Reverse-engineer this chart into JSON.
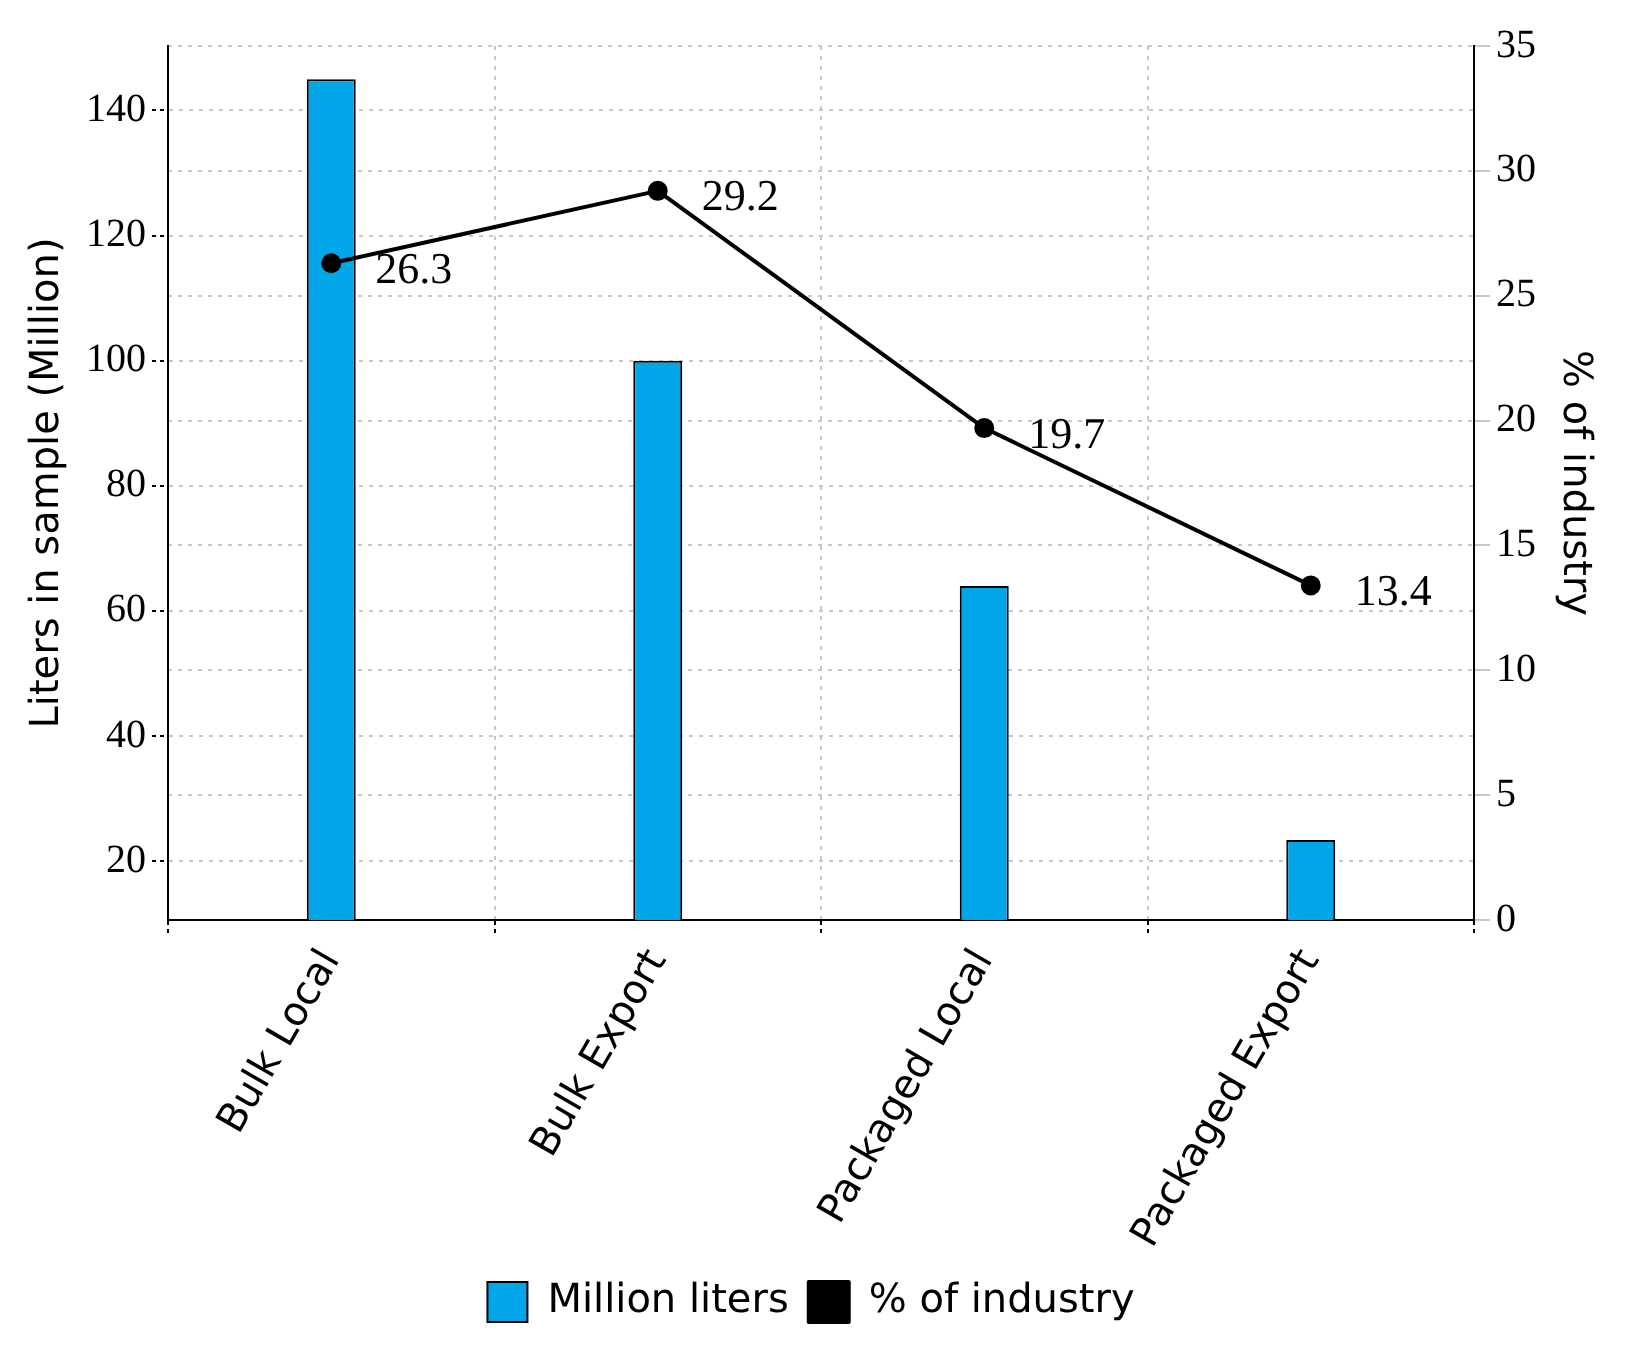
{
  "chart_data": {
    "type": "bar",
    "categories": [
      "Bulk Local",
      "Bulk Export",
      "Packaged Local",
      "Packaged Export"
    ],
    "ylabel": "Liters in sample (Million)",
    "y2label": "% of industry",
    "series": [
      {
        "name": "Million liters",
        "color": "#00a6e8",
        "values": [
          145,
          100,
          64,
          23.4
        ]
      },
      {
        "name": "% of industry",
        "type": "line",
        "axis": "y2",
        "color": "#000000",
        "values": [
          26.3,
          29.2,
          19.7,
          13.4
        ],
        "data_labels": true,
        "marker": "circle"
      }
    ],
    "ylim": [
      10.6,
      150.3
    ],
    "yticks": [
      20,
      40,
      60,
      80,
      100,
      120,
      140
    ],
    "y2lim": [
      0,
      35
    ],
    "y2ticks": [
      0,
      5,
      10,
      15,
      20,
      25,
      30,
      35
    ],
    "grid": true,
    "legend": "bottom"
  }
}
